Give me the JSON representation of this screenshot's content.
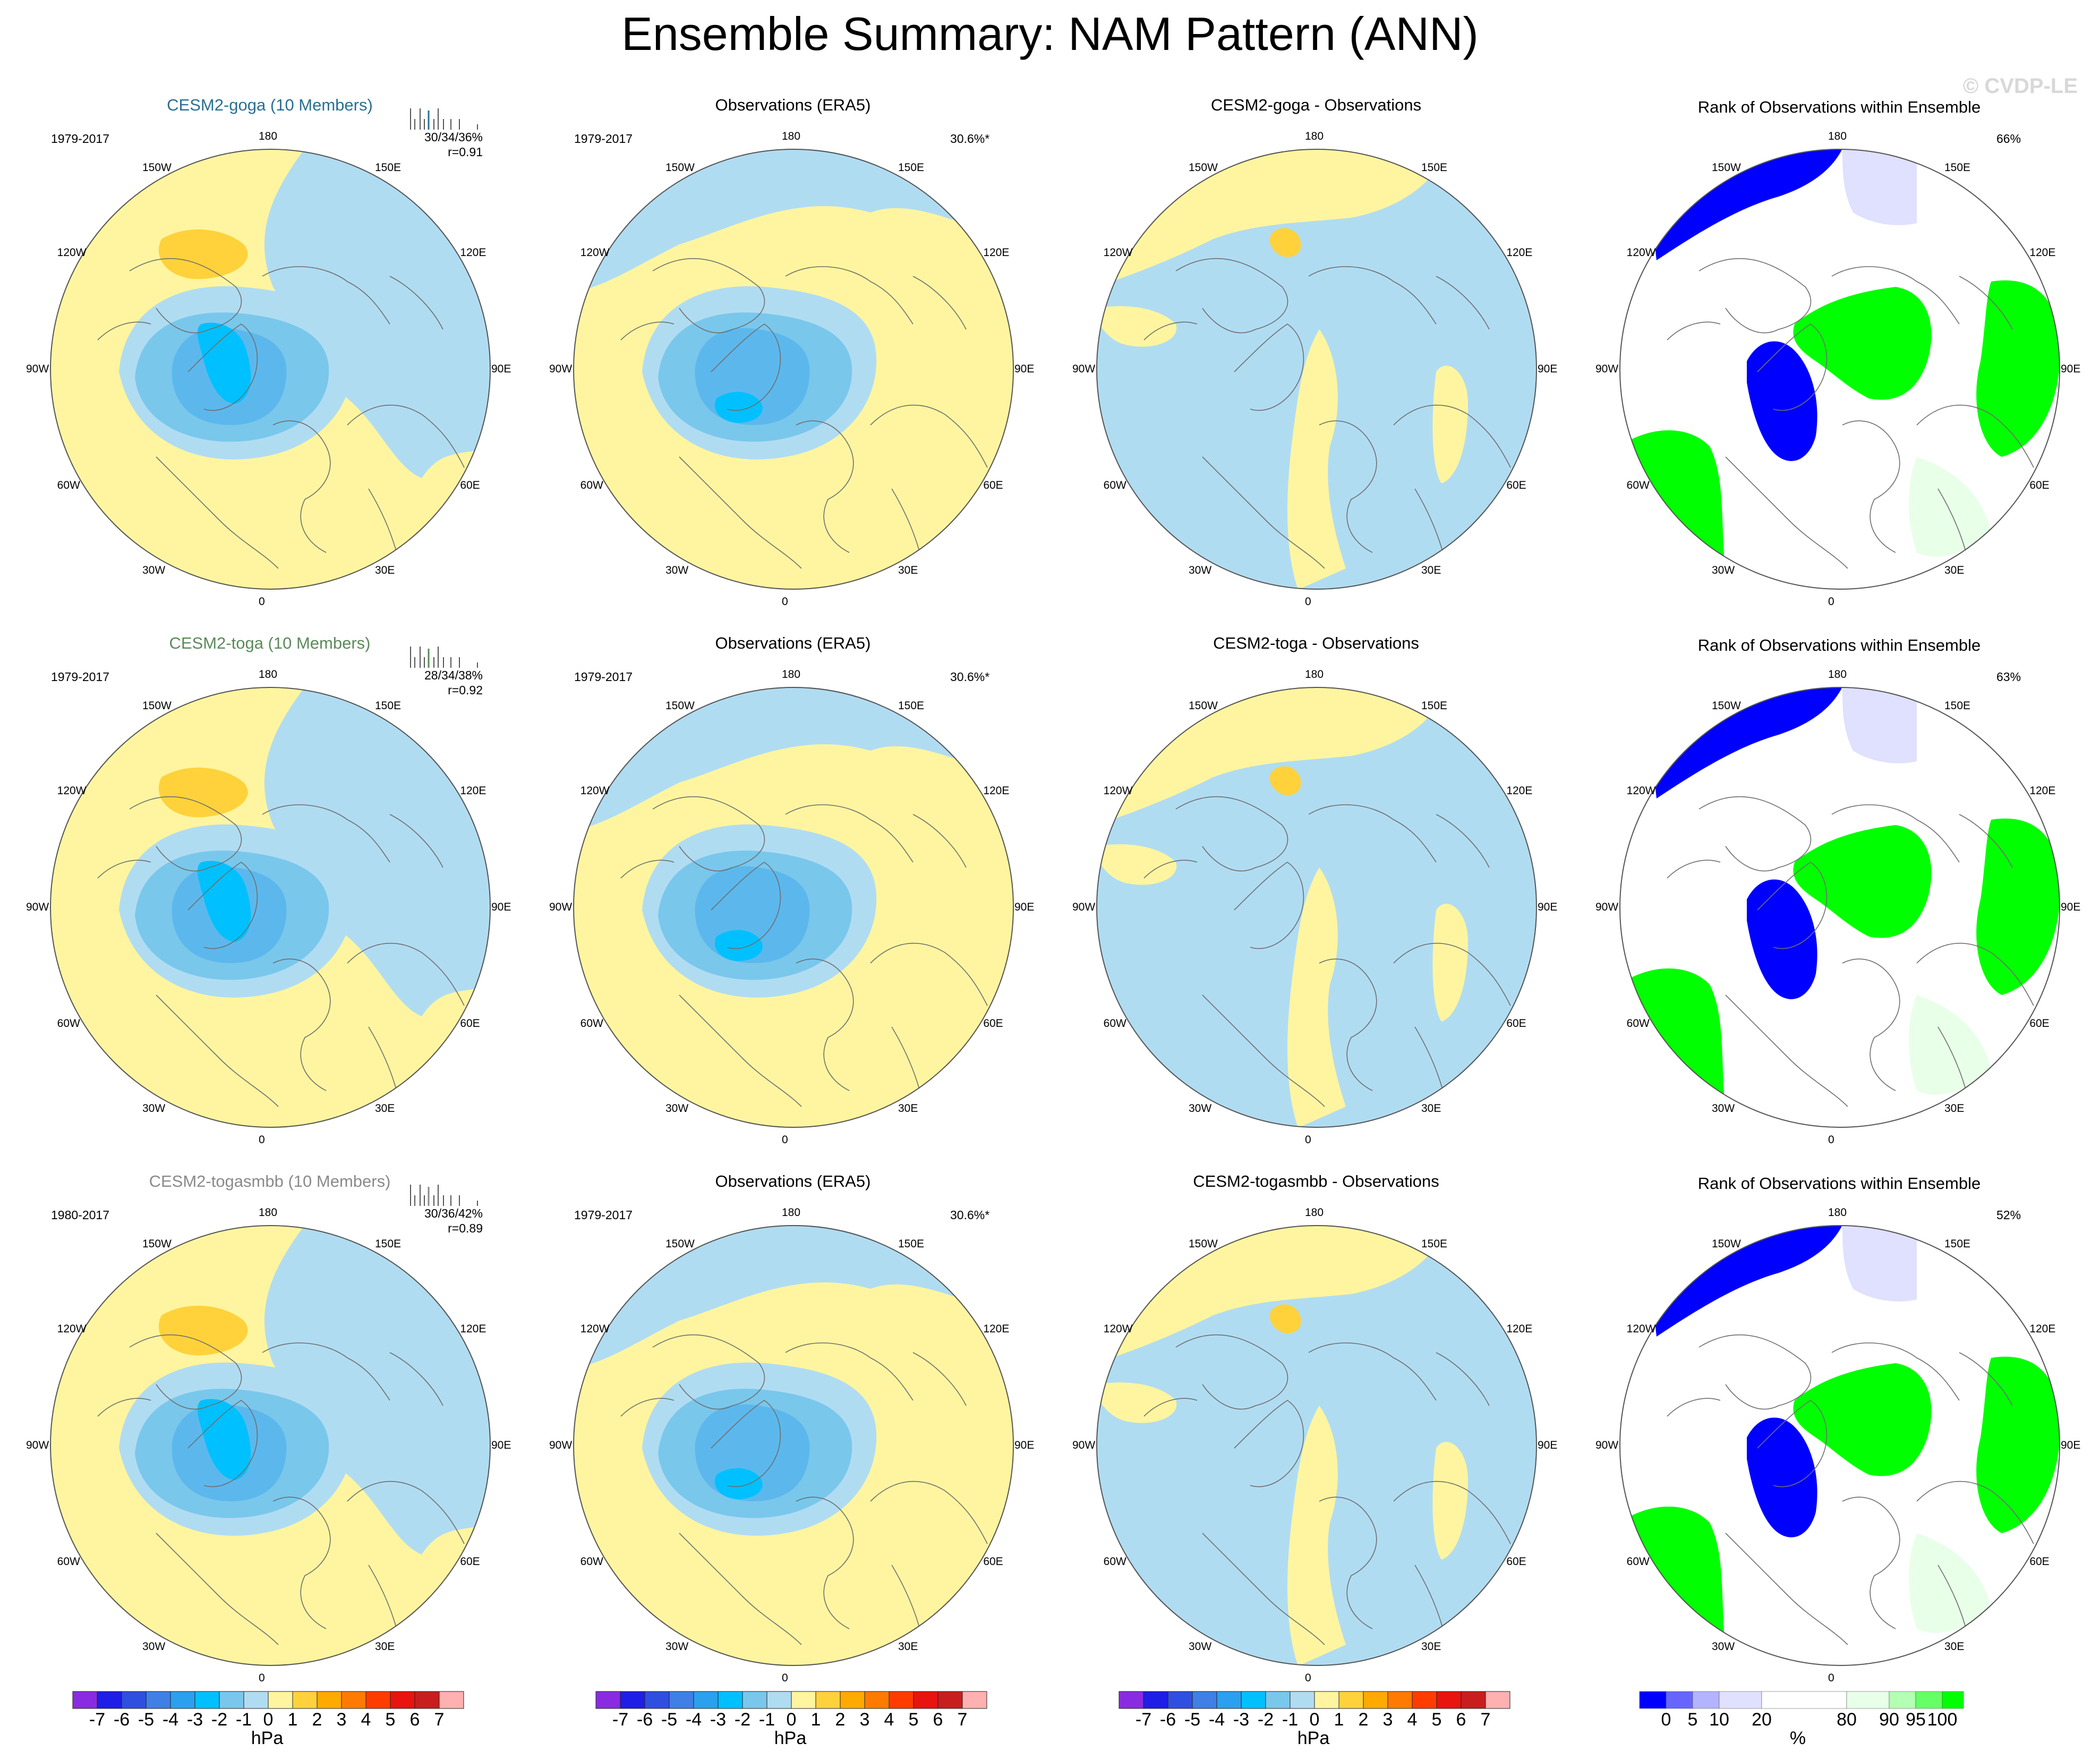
{
  "title": "Ensemble Summary: NAM Pattern (ANN)",
  "watermark": "© CVDP-LE",
  "rows": [
    {
      "model": {
        "title": "CESM2-goga (10 Members)",
        "color": "#2a6f92",
        "period": "1979-2017",
        "stats": "30/34/36%",
        "r": "r=0.91"
      },
      "obs": {
        "title": "Observations (ERA5)",
        "period": "1979-2017",
        "pct": "30.6%*"
      },
      "diff": {
        "title": "CESM2-goga - Observations"
      },
      "rank": {
        "title": "Rank of Observations within Ensemble",
        "pct": "66%"
      }
    },
    {
      "model": {
        "title": "CESM2-toga (10 Members)",
        "color": "#5a8a5a",
        "period": "1979-2017",
        "stats": "28/34/38%",
        "r": "r=0.92"
      },
      "obs": {
        "title": "Observations (ERA5)",
        "period": "1979-2017",
        "pct": "30.6%*"
      },
      "diff": {
        "title": "CESM2-toga - Observations"
      },
      "rank": {
        "title": "Rank of Observations within Ensemble",
        "pct": "63%"
      }
    },
    {
      "model": {
        "title": "CESM2-togasmbb (10 Members)",
        "color": "#8a8a8a",
        "period": "1980-2017",
        "stats": "30/36/42%",
        "r": "r=0.89"
      },
      "obs": {
        "title": "Observations (ERA5)",
        "period": "1979-2017",
        "pct": "30.6%*"
      },
      "diff": {
        "title": "CESM2-togasmbb - Observations"
      },
      "rank": {
        "title": "Rank of Observations within Ensemble",
        "pct": "52%"
      }
    }
  ],
  "lon_labels": [
    "180",
    "150W",
    "150E",
    "120W",
    "120E",
    "90W",
    "90E",
    "60W",
    "60E",
    "30W",
    "30E",
    "0"
  ],
  "hpa_colorbar": {
    "labels": [
      "-7",
      "-6",
      "-5",
      "-4",
      "-3",
      "-2",
      "-1",
      "0",
      "1",
      "2",
      "3",
      "4",
      "5",
      "6",
      "7"
    ],
    "unit": "hPa",
    "colors": [
      "#8a2be2",
      "#1e1ee6",
      "#2f4fe0",
      "#3f7fe6",
      "#2aa0ef",
      "#00c0ff",
      "#7ac7ec",
      "#b0dcf2",
      "#fff5a0",
      "#ffd23c",
      "#ffaa00",
      "#ff7a00",
      "#ff3c00",
      "#e8140f",
      "#c81e1e",
      "#ffb0b0"
    ]
  },
  "rank_colorbar": {
    "labels": [
      "0",
      "5",
      "10",
      "20",
      "80",
      "90",
      "95",
      "100"
    ],
    "unit": "%",
    "colors": [
      "#0000ff",
      "#6666ff",
      "#b3b3ff",
      "#e0e0ff",
      "#ffffff",
      "#e8ffe8",
      "#b3ffb3",
      "#66ff66",
      "#00ff00"
    ]
  }
}
